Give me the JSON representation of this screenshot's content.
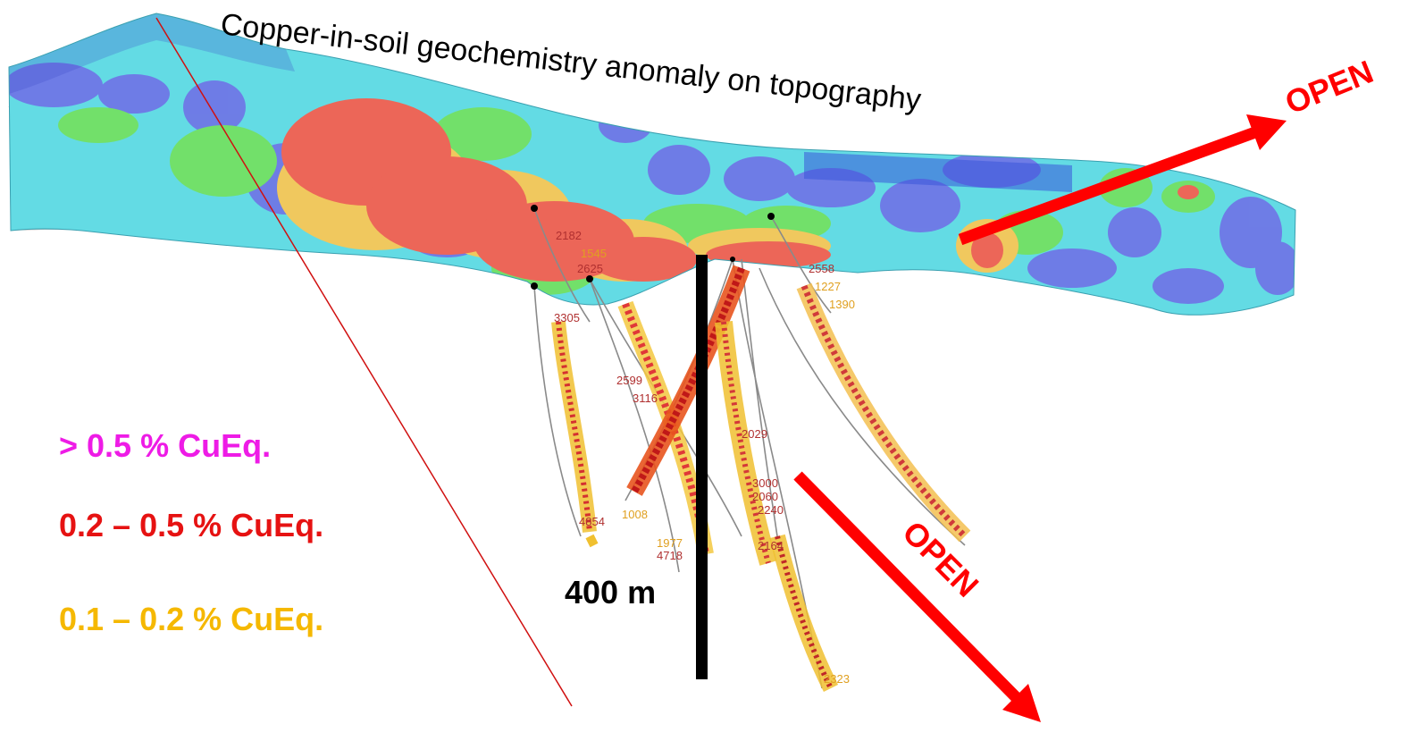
{
  "title": "Copper-in-soil geochemistry anomaly on topography",
  "open_labels": {
    "upper": "OPEN",
    "lower": "OPEN"
  },
  "scale_bar": {
    "label": "400 m"
  },
  "legend": [
    {
      "label": "> 0.5 % CuEq.",
      "color": "#ee1be6"
    },
    {
      "label": "0.2 – 0.5 % CuEq.",
      "color": "#e61212"
    },
    {
      "label": "0.1 – 0.2 % CuEq.",
      "color": "#f5b800"
    }
  ],
  "drillhole_labels": [
    "2182",
    "1545",
    "2625",
    "2558",
    "1227",
    "1390",
    "3305",
    "2599",
    "3116",
    "2029",
    "3000",
    "2060",
    "2240",
    "2164",
    "1008",
    "1977",
    "4718",
    "4854",
    "2323"
  ],
  "colors": {
    "open_arrow": "#ff0000",
    "scale_bar": "#000000",
    "surface_base": "#5fd8e0",
    "anomaly_high": "#ee6a5c",
    "anomaly_mid": "#f2c85a",
    "anomaly_low": "#6ee06a",
    "background_low": "#6070e0",
    "terrain_grey": "#c8c8c8"
  }
}
